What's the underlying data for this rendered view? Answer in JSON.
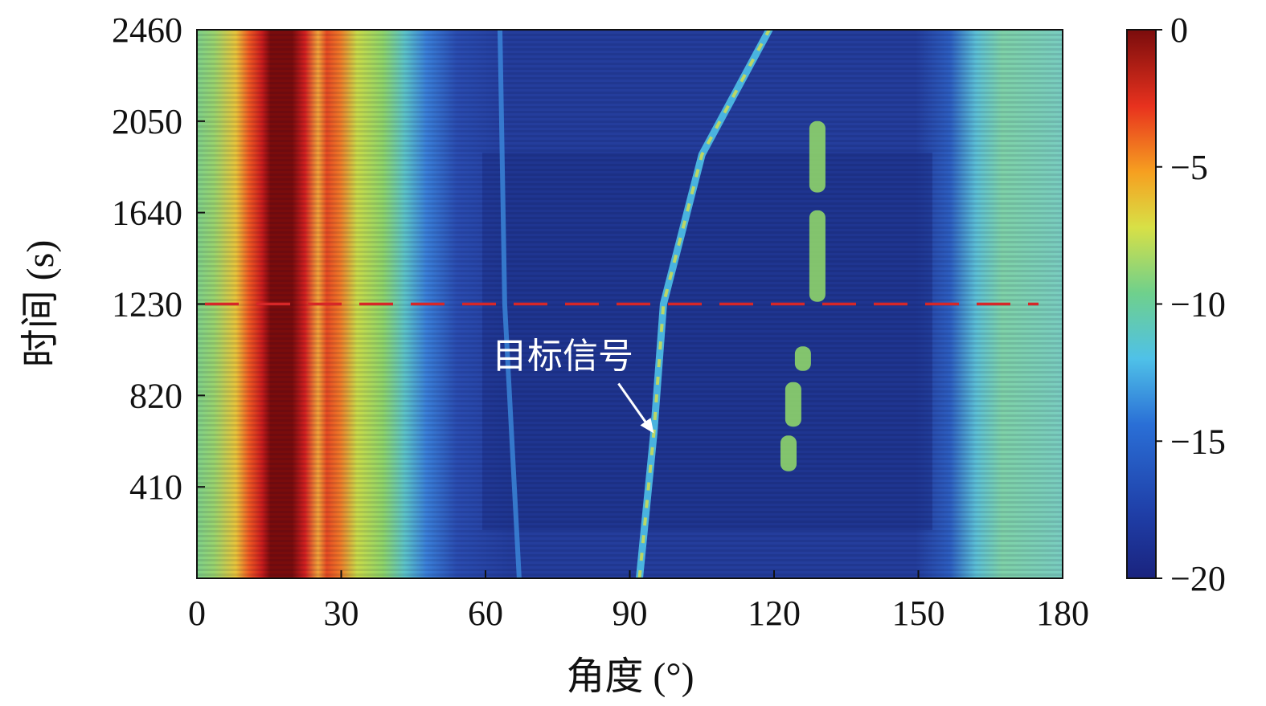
{
  "chart_data": {
    "type": "heatmap",
    "xlabel": "角度 (°)",
    "ylabel": "时间 (s)",
    "xlim": [
      0,
      180
    ],
    "ylim": [
      0,
      2460
    ],
    "x_ticks": [
      "0",
      "30",
      "60",
      "90",
      "120",
      "150",
      "180"
    ],
    "y_ticks": [
      "410",
      "820",
      "1230",
      "1640",
      "2050",
      "2460"
    ],
    "colorbar": {
      "range": [
        -20,
        0
      ],
      "ticks": [
        "0",
        "−5",
        "−10",
        "−15",
        "−20"
      ],
      "colormap": "jet"
    },
    "reference_line": {
      "time": 1230,
      "color": "#d62728",
      "style": "dashed"
    },
    "annotation": {
      "text": "目标信号",
      "points_to": {
        "angle": 95,
        "time": 650
      }
    },
    "features": [
      {
        "description": "main lobe",
        "center_angle": 16,
        "level_db": 0
      },
      {
        "description": "target track",
        "angle_at_time": [
          [
            92,
            0
          ],
          [
            95,
            650
          ],
          [
            97,
            1230
          ],
          [
            105,
            1900
          ],
          [
            119,
            2460
          ]
        ]
      },
      {
        "description": "weak track",
        "angle_at_time": [
          [
            67,
            0
          ],
          [
            64,
            1230
          ],
          [
            63,
            2460
          ]
        ]
      },
      {
        "description": "segments near 125-130",
        "level_db": -10
      }
    ]
  }
}
